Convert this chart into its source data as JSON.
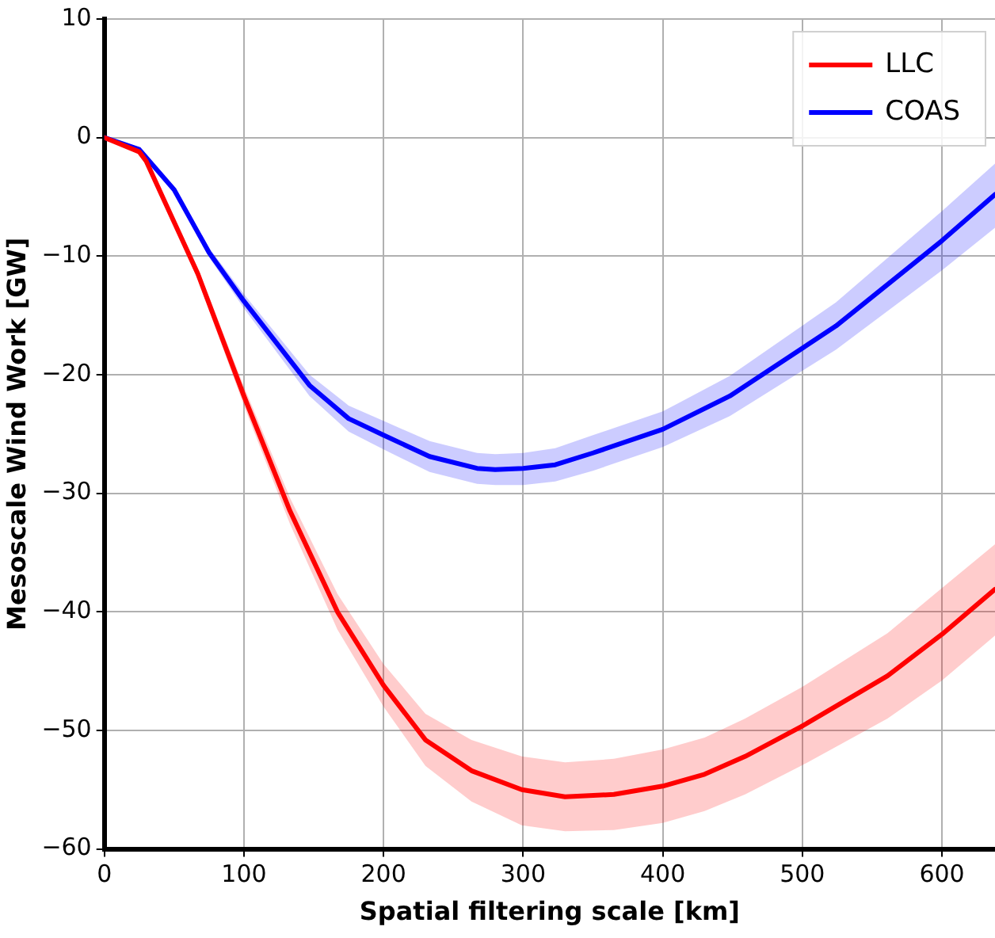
{
  "chart_data": {
    "type": "line",
    "xlabel": "Spatial filtering scale [km]",
    "ylabel": "Mesoscale Wind Work [GW]",
    "xlim": [
      0,
      638
    ],
    "ylim": [
      -60,
      10
    ],
    "xticks": [
      0,
      100,
      200,
      300,
      400,
      500,
      600
    ],
    "yticks": [
      -60,
      -50,
      -40,
      -30,
      -20,
      -10,
      0,
      10
    ],
    "grid": true,
    "legend": "top right",
    "line_style": "solid",
    "marker": "none",
    "series": [
      {
        "name": "LLC",
        "color": "#ff0000",
        "x": [
          0,
          25,
          30,
          67,
          100,
          133,
          167,
          200,
          230,
          263,
          299,
          330,
          365,
          400,
          430,
          459,
          499,
          561,
          600,
          638
        ],
        "values": [
          0,
          -1.2,
          -2.0,
          -11.5,
          -21.8,
          -31.5,
          -40,
          -46.2,
          -50.8,
          -53.4,
          -55.0,
          -55.6,
          -55.4,
          -54.7,
          -53.7,
          -52.2,
          -49.7,
          -45.4,
          -41.9,
          -38.1
        ],
        "lower": [
          0,
          -1.3,
          -2.2,
          -12.0,
          -22.6,
          -32.6,
          -41.5,
          -48,
          -53,
          -56,
          -58,
          -58.5,
          -58.4,
          -57.8,
          -56.8,
          -55.4,
          -53,
          -49,
          -45.8,
          -42
        ],
        "upper": [
          0,
          -1.1,
          -1.8,
          -11.0,
          -21.0,
          -30.4,
          -38.5,
          -44.4,
          -48.6,
          -50.8,
          -52.2,
          -52.7,
          -52.4,
          -51.6,
          -50.6,
          -49,
          -46.4,
          -41.8,
          -38,
          -34.3
        ]
      },
      {
        "name": "COAS",
        "color": "#0000ff",
        "x": [
          0,
          25,
          50,
          75,
          100,
          147,
          175,
          200,
          233,
          267,
          280,
          300,
          323,
          350,
          400,
          448,
          524,
          600,
          638
        ],
        "values": [
          0,
          -1.0,
          -4.4,
          -9.7,
          -13.8,
          -20.9,
          -23.7,
          -25.1,
          -26.9,
          -27.9,
          -28.0,
          -27.9,
          -27.6,
          -26.6,
          -24.6,
          -21.8,
          -15.9,
          -8.7,
          -4.8
        ],
        "lower": [
          0,
          -1.1,
          -4.6,
          -10.1,
          -14.4,
          -21.8,
          -24.8,
          -26.3,
          -28.2,
          -29.2,
          -29.3,
          -29.3,
          -29.0,
          -28.1,
          -26.1,
          -23.5,
          -17.9,
          -11.2,
          -7.6
        ],
        "upper": [
          0,
          -0.9,
          -4.2,
          -9.3,
          -13.2,
          -20.0,
          -22.6,
          -23.9,
          -25.6,
          -26.6,
          -26.7,
          -26.6,
          -26.2,
          -25.1,
          -23.1,
          -20.1,
          -13.9,
          -6.2,
          -2.2
        ]
      }
    ]
  }
}
